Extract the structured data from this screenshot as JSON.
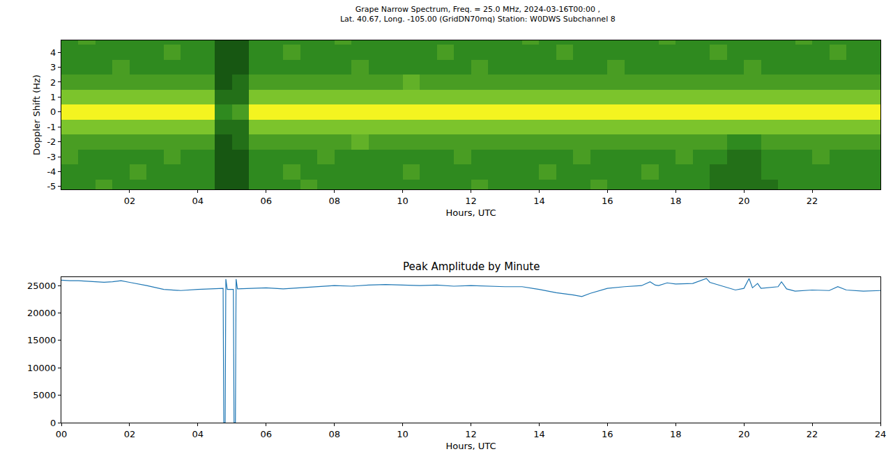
{
  "chart_data": [
    {
      "type": "heatmap",
      "title": "Grape Narrow Spectrum, Freq. = 25.0 MHz, 2024-03-16T00:00 ,",
      "subtitle": "Lat. 40.67, Long. -105.00 (GridDN70mq) Station: W0DWS Subchannel 8",
      "x_label": "Hours, UTC",
      "y_label": "Doppler Shift (Hz)",
      "x": [
        0.25,
        0.75,
        1.25,
        1.75,
        2.25,
        2.75,
        3.25,
        3.75,
        4.25,
        4.75,
        5.25,
        5.75,
        6.25,
        6.75,
        7.25,
        7.75,
        8.25,
        8.75,
        9.25,
        9.75,
        10.25,
        10.75,
        11.25,
        11.75,
        12.25,
        12.75,
        13.25,
        13.75,
        14.25,
        14.75,
        15.25,
        15.75,
        16.25,
        16.75,
        17.25,
        17.75,
        18.25,
        18.75,
        19.25,
        19.75,
        20.25,
        20.75,
        21.25,
        21.75,
        22.25,
        22.75,
        23.25,
        23.75
      ],
      "y": [
        -5,
        -4,
        -3,
        -2,
        -1,
        0,
        1,
        2,
        3,
        4,
        5
      ],
      "cells": [
        [
          3,
          3,
          4,
          3,
          3,
          3,
          3,
          3,
          3,
          1,
          1,
          3,
          3,
          3,
          4,
          3,
          3,
          3,
          3,
          3,
          3,
          3,
          3,
          3,
          4,
          3,
          3,
          3,
          3,
          3,
          3,
          4,
          3,
          3,
          3,
          3,
          3,
          3,
          2,
          2,
          2,
          2,
          3,
          3,
          3,
          3,
          3,
          3
        ],
        [
          3,
          3,
          3,
          3,
          4,
          3,
          3,
          3,
          3,
          1,
          1,
          3,
          3,
          4,
          3,
          3,
          3,
          3,
          3,
          3,
          4,
          3,
          3,
          3,
          3,
          3,
          3,
          3,
          4,
          3,
          3,
          3,
          3,
          3,
          4,
          3,
          3,
          3,
          2,
          2,
          2,
          3,
          3,
          3,
          3,
          3,
          3,
          3
        ],
        [
          4,
          3,
          3,
          3,
          3,
          3,
          4,
          3,
          3,
          1,
          1,
          3,
          3,
          3,
          3,
          4,
          3,
          3,
          3,
          3,
          3,
          3,
          3,
          4,
          3,
          3,
          3,
          3,
          3,
          3,
          4,
          3,
          3,
          3,
          3,
          3,
          4,
          3,
          3,
          2,
          2,
          3,
          3,
          3,
          4,
          3,
          3,
          3
        ],
        [
          4,
          4,
          4,
          4,
          4,
          4,
          4,
          4,
          4,
          1,
          2,
          4,
          4,
          4,
          4,
          4,
          4,
          5,
          4,
          4,
          4,
          4,
          4,
          4,
          4,
          4,
          4,
          4,
          4,
          4,
          4,
          4,
          4,
          4,
          4,
          4,
          4,
          4,
          4,
          3,
          3,
          4,
          4,
          4,
          4,
          4,
          4,
          4
        ],
        [
          6,
          6,
          6,
          6,
          6,
          6,
          6,
          6,
          6,
          2,
          2,
          6,
          6,
          6,
          6,
          6,
          6,
          6,
          6,
          6,
          6,
          6,
          6,
          6,
          6,
          6,
          6,
          6,
          6,
          6,
          6,
          6,
          6,
          6,
          6,
          6,
          6,
          6,
          6,
          6,
          6,
          6,
          6,
          6,
          6,
          6,
          6,
          6
        ],
        [
          10,
          10,
          10,
          10,
          10,
          10,
          10,
          10,
          10,
          3,
          4,
          10,
          10,
          10,
          10,
          10,
          10,
          10,
          10,
          10,
          10,
          10,
          10,
          10,
          10,
          10,
          10,
          10,
          10,
          10,
          10,
          10,
          10,
          10,
          10,
          10,
          10,
          10,
          10,
          10,
          10,
          10,
          10,
          10,
          10,
          10,
          10,
          10
        ],
        [
          6,
          6,
          6,
          6,
          6,
          6,
          6,
          6,
          6,
          2,
          2,
          6,
          6,
          6,
          6,
          6,
          6,
          6,
          6,
          6,
          6,
          6,
          6,
          6,
          6,
          6,
          6,
          6,
          6,
          6,
          6,
          6,
          6,
          6,
          6,
          6,
          6,
          6,
          6,
          6,
          6,
          6,
          6,
          6,
          6,
          6,
          6,
          6
        ],
        [
          4,
          4,
          4,
          4,
          4,
          4,
          4,
          4,
          4,
          1,
          2,
          4,
          4,
          4,
          4,
          4,
          4,
          4,
          4,
          4,
          5,
          4,
          4,
          4,
          4,
          4,
          4,
          4,
          4,
          4,
          4,
          4,
          4,
          4,
          4,
          4,
          4,
          4,
          4,
          4,
          4,
          4,
          4,
          4,
          4,
          4,
          4,
          4
        ],
        [
          3,
          3,
          3,
          4,
          3,
          3,
          3,
          3,
          3,
          1,
          1,
          3,
          3,
          3,
          3,
          3,
          3,
          4,
          3,
          3,
          3,
          3,
          3,
          3,
          4,
          3,
          3,
          3,
          3,
          3,
          3,
          3,
          4,
          3,
          3,
          3,
          3,
          3,
          3,
          3,
          4,
          3,
          3,
          3,
          3,
          3,
          3,
          3
        ],
        [
          3,
          3,
          3,
          3,
          3,
          3,
          4,
          3,
          3,
          1,
          1,
          3,
          3,
          4,
          3,
          3,
          3,
          3,
          3,
          3,
          3,
          3,
          4,
          3,
          3,
          3,
          3,
          3,
          3,
          4,
          3,
          3,
          3,
          3,
          3,
          3,
          3,
          3,
          4,
          3,
          3,
          3,
          3,
          3,
          3,
          4,
          3,
          3
        ],
        [
          3,
          4,
          3,
          3,
          3,
          3,
          3,
          3,
          3,
          1,
          1,
          3,
          3,
          3,
          3,
          3,
          4,
          3,
          3,
          3,
          3,
          3,
          3,
          3,
          3,
          3,
          3,
          4,
          3,
          3,
          3,
          3,
          3,
          3,
          3,
          4,
          3,
          3,
          3,
          3,
          3,
          3,
          3,
          4,
          3,
          3,
          3,
          3
        ]
      ],
      "zlim": [
        0,
        10
      ],
      "xlim": [
        0,
        24
      ],
      "xticks": [
        {
          "value": 2,
          "label": "02"
        },
        {
          "value": 4,
          "label": "04"
        },
        {
          "value": 6,
          "label": "06"
        },
        {
          "value": 8,
          "label": "08"
        },
        {
          "value": 10,
          "label": "10"
        },
        {
          "value": 12,
          "label": "12"
        },
        {
          "value": 14,
          "label": "14"
        },
        {
          "value": 16,
          "label": "16"
        },
        {
          "value": 18,
          "label": "18"
        },
        {
          "value": 20,
          "label": "20"
        },
        {
          "value": 22,
          "label": "22"
        }
      ],
      "ylim": [
        -5.2,
        4.8
      ],
      "yticks": [
        -5,
        -4,
        -3,
        -2,
        -1,
        0,
        1,
        2,
        3,
        4
      ],
      "grid": false
    },
    {
      "type": "line",
      "title": "Peak Amplitude by Minute",
      "x_label": "Hours, UTC",
      "color": "#1f77b4",
      "x": [
        0,
        0.25,
        0.5,
        0.75,
        1,
        1.25,
        1.5,
        1.75,
        2,
        2.5,
        3,
        3.5,
        4,
        4.5,
        4.74,
        4.76,
        4.8,
        4.82,
        4.86,
        5.04,
        5.06,
        5.1,
        5.12,
        5.16,
        5.5,
        6,
        6.5,
        7,
        7.5,
        8,
        8.5,
        9,
        9.5,
        10,
        10.5,
        11,
        11.5,
        12,
        12.5,
        13,
        13.5,
        14,
        14.5,
        15,
        15.25,
        15.5,
        16,
        16.5,
        17,
        17.25,
        17.4,
        17.5,
        17.75,
        18,
        18.5,
        18.9,
        19,
        19.25,
        19.5,
        19.75,
        20,
        20.15,
        20.25,
        20.4,
        20.5,
        21,
        21.1,
        21.25,
        21.5,
        22,
        22.5,
        22.75,
        23,
        23.5,
        24
      ],
      "values": [
        26000,
        25900,
        25900,
        25800,
        25700,
        25600,
        25700,
        25900,
        25600,
        25000,
        24300,
        24100,
        24300,
        24400,
        24500,
        0,
        0,
        26200,
        24300,
        24300,
        0,
        0,
        26200,
        24400,
        24500,
        24600,
        24400,
        24600,
        24800,
        25000,
        24900,
        25100,
        25200,
        25100,
        25000,
        25100,
        24900,
        25000,
        24900,
        24800,
        24800,
        24300,
        23700,
        23300,
        23000,
        23600,
        24500,
        24800,
        25000,
        25700,
        25100,
        25000,
        25500,
        25300,
        25400,
        26300,
        25600,
        25100,
        24600,
        24200,
        24500,
        26300,
        24600,
        25400,
        24500,
        24800,
        25700,
        24400,
        24000,
        24200,
        24100,
        24800,
        24200,
        24000,
        24100
      ],
      "xlim": [
        0,
        24
      ],
      "xticks": [
        {
          "value": 0,
          "label": "00"
        },
        {
          "value": 2,
          "label": "02"
        },
        {
          "value": 4,
          "label": "04"
        },
        {
          "value": 6,
          "label": "06"
        },
        {
          "value": 8,
          "label": "08"
        },
        {
          "value": 10,
          "label": "10"
        },
        {
          "value": 12,
          "label": "12"
        },
        {
          "value": 14,
          "label": "14"
        },
        {
          "value": 16,
          "label": "16"
        },
        {
          "value": 18,
          "label": "18"
        },
        {
          "value": 20,
          "label": "20"
        },
        {
          "value": 22,
          "label": "22"
        },
        {
          "value": 24,
          "label": "24"
        }
      ],
      "ylim": [
        0,
        26500
      ],
      "yticks": [
        0,
        5000,
        10000,
        15000,
        20000,
        25000
      ],
      "grid": false
    }
  ]
}
